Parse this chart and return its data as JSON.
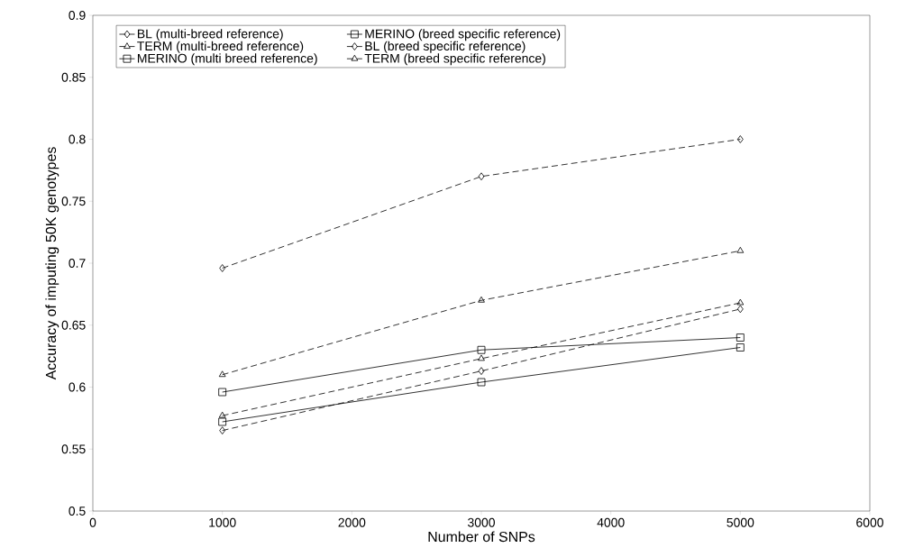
{
  "chart_data": {
    "type": "line",
    "xlabel": "Number of SNPs",
    "ylabel": "Accuracy of imputing 50K genotypes",
    "x": [
      1000,
      3000,
      5000
    ],
    "series": [
      {
        "name": "BL (multi-breed reference)",
        "color": "#000000",
        "values": [
          0.565,
          0.613,
          0.663
        ],
        "marker": "diamond",
        "line_style": "dashed"
      },
      {
        "name": "MERINO (breed specific reference)",
        "color": "#000000",
        "values": [
          0.596,
          0.63,
          0.64
        ],
        "marker": "square",
        "line_style": "solid"
      },
      {
        "name": "TERM (multi-breed reference)",
        "color": "#000000",
        "values": [
          0.577,
          0.623,
          0.668
        ],
        "marker": "triangle",
        "line_style": "dashed"
      },
      {
        "name": "BL (breed specific reference)",
        "color": "#000000",
        "values": [
          0.696,
          0.77,
          0.8
        ],
        "marker": "diamond",
        "line_style": "dashed"
      },
      {
        "name": "MERINO (multi breed reference)",
        "color": "#000000",
        "values": [
          0.572,
          0.604,
          0.632
        ],
        "marker": "square",
        "line_style": "solid"
      },
      {
        "name": "TERM (breed specific reference)",
        "color": "#000000",
        "values": [
          0.61,
          0.67,
          0.71
        ],
        "marker": "triangle",
        "line_style": "dashed"
      }
    ],
    "xlim": [
      0,
      6000
    ],
    "xticks": [
      0,
      1000,
      2000,
      3000,
      4000,
      5000,
      6000
    ],
    "ylim": [
      0.5,
      0.9
    ],
    "yticks": [
      0.5,
      0.55,
      0.6,
      0.65,
      0.7,
      0.75,
      0.8,
      0.85,
      0.9
    ],
    "legend": "top",
    "grid": false
  }
}
